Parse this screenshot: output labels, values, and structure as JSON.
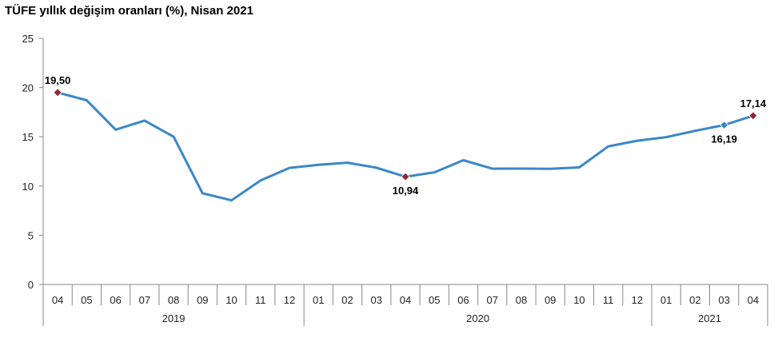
{
  "chart_data": {
    "type": "line",
    "title": "TÜFE yıllık değişim oranları (%), Nisan 2021",
    "xlabel": "",
    "ylabel": "",
    "ylim": [
      0,
      25
    ],
    "yticks": [
      "0",
      "5",
      "10",
      "15",
      "20",
      "25"
    ],
    "categories": [
      "04",
      "05",
      "06",
      "07",
      "08",
      "09",
      "10",
      "11",
      "12",
      "01",
      "02",
      "03",
      "04",
      "05",
      "06",
      "07",
      "08",
      "09",
      "10",
      "11",
      "12",
      "01",
      "02",
      "03",
      "04"
    ],
    "year_groups": [
      {
        "label": "2019",
        "count": 9
      },
      {
        "label": "2020",
        "count": 12
      },
      {
        "label": "2021",
        "count": 4
      }
    ],
    "series": [
      {
        "values": [
          19.5,
          18.71,
          15.72,
          16.65,
          15.01,
          9.26,
          8.55,
          10.56,
          11.84,
          12.15,
          12.37,
          11.86,
          10.94,
          11.39,
          12.62,
          11.76,
          11.77,
          11.75,
          11.89,
          14.03,
          14.6,
          14.97,
          15.61,
          16.19,
          17.14
        ]
      }
    ],
    "data_labels": [
      {
        "index": 0,
        "text": "19,50",
        "position": "above"
      },
      {
        "index": 12,
        "text": "10,94",
        "position": "below"
      },
      {
        "index": 23,
        "text": "16,19",
        "position": "below"
      },
      {
        "index": 24,
        "text": "17,14",
        "position": "above"
      }
    ],
    "grid": false,
    "line_color": "#3a87c8",
    "highlight_marker_color": "#8b2a3c",
    "marker_color_blue": "#3a87c8"
  }
}
